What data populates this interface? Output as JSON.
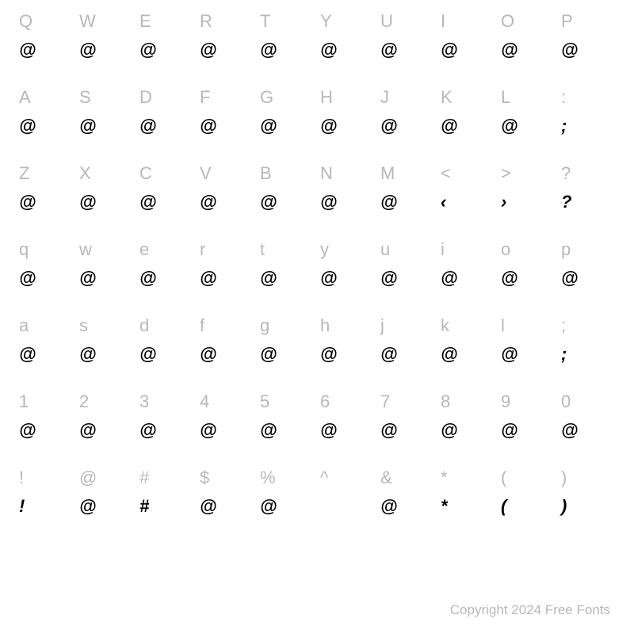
{
  "chart": {
    "type": "table",
    "columns": 10,
    "rows": 7,
    "background_color": "#ffffff",
    "key_color": "#b8b8b8",
    "glyph_color": "#000000",
    "key_fontsize": 22,
    "glyph_fontsize": 22,
    "cells": [
      {
        "key": "Q",
        "glyph": "@"
      },
      {
        "key": "W",
        "glyph": "@"
      },
      {
        "key": "E",
        "glyph": "@"
      },
      {
        "key": "R",
        "glyph": "@"
      },
      {
        "key": "T",
        "glyph": "@"
      },
      {
        "key": "Y",
        "glyph": "@"
      },
      {
        "key": "U",
        "glyph": "@"
      },
      {
        "key": "I",
        "glyph": "@"
      },
      {
        "key": "O",
        "glyph": "@"
      },
      {
        "key": "P",
        "glyph": "@"
      },
      {
        "key": "A",
        "glyph": "@"
      },
      {
        "key": "S",
        "glyph": "@"
      },
      {
        "key": "D",
        "glyph": "@"
      },
      {
        "key": "F",
        "glyph": "@"
      },
      {
        "key": "G",
        "glyph": "@"
      },
      {
        "key": "H",
        "glyph": "@"
      },
      {
        "key": "J",
        "glyph": "@"
      },
      {
        "key": "K",
        "glyph": "@"
      },
      {
        "key": "L",
        "glyph": "@"
      },
      {
        "key": ":",
        "glyph": ";"
      },
      {
        "key": "Z",
        "glyph": "@"
      },
      {
        "key": "X",
        "glyph": "@"
      },
      {
        "key": "C",
        "glyph": "@"
      },
      {
        "key": "V",
        "glyph": "@"
      },
      {
        "key": "B",
        "glyph": "@"
      },
      {
        "key": "N",
        "glyph": "@"
      },
      {
        "key": "M",
        "glyph": "@"
      },
      {
        "key": "<",
        "glyph": "‹"
      },
      {
        "key": ">",
        "glyph": "›"
      },
      {
        "key": "?",
        "glyph": "?"
      },
      {
        "key": "q",
        "glyph": "@"
      },
      {
        "key": "w",
        "glyph": "@"
      },
      {
        "key": "e",
        "glyph": "@"
      },
      {
        "key": "r",
        "glyph": "@"
      },
      {
        "key": "t",
        "glyph": "@"
      },
      {
        "key": "y",
        "glyph": "@"
      },
      {
        "key": "u",
        "glyph": "@"
      },
      {
        "key": "i",
        "glyph": "@"
      },
      {
        "key": "o",
        "glyph": "@"
      },
      {
        "key": "p",
        "glyph": "@"
      },
      {
        "key": "a",
        "glyph": "@"
      },
      {
        "key": "s",
        "glyph": "@"
      },
      {
        "key": "d",
        "glyph": "@"
      },
      {
        "key": "f",
        "glyph": "@"
      },
      {
        "key": "g",
        "glyph": "@"
      },
      {
        "key": "h",
        "glyph": "@"
      },
      {
        "key": "j",
        "glyph": "@"
      },
      {
        "key": "k",
        "glyph": "@"
      },
      {
        "key": "l",
        "glyph": "@"
      },
      {
        "key": ";",
        "glyph": ";"
      },
      {
        "key": "1",
        "glyph": "@"
      },
      {
        "key": "2",
        "glyph": "@"
      },
      {
        "key": "3",
        "glyph": "@"
      },
      {
        "key": "4",
        "glyph": "@"
      },
      {
        "key": "5",
        "glyph": "@"
      },
      {
        "key": "6",
        "glyph": "@"
      },
      {
        "key": "7",
        "glyph": "@"
      },
      {
        "key": "8",
        "glyph": "@"
      },
      {
        "key": "9",
        "glyph": "@"
      },
      {
        "key": "0",
        "glyph": "@"
      },
      {
        "key": "!",
        "glyph": "!"
      },
      {
        "key": "@",
        "glyph": "@"
      },
      {
        "key": "#",
        "glyph": "#"
      },
      {
        "key": "$",
        "glyph": "@"
      },
      {
        "key": "%",
        "glyph": "@"
      },
      {
        "key": "^",
        "glyph": ""
      },
      {
        "key": "&",
        "glyph": "@"
      },
      {
        "key": "*",
        "glyph": "*"
      },
      {
        "key": "(",
        "glyph": "("
      },
      {
        "key": ")",
        "glyph": ")"
      }
    ]
  },
  "copyright": "Copyright 2024 Free Fonts"
}
